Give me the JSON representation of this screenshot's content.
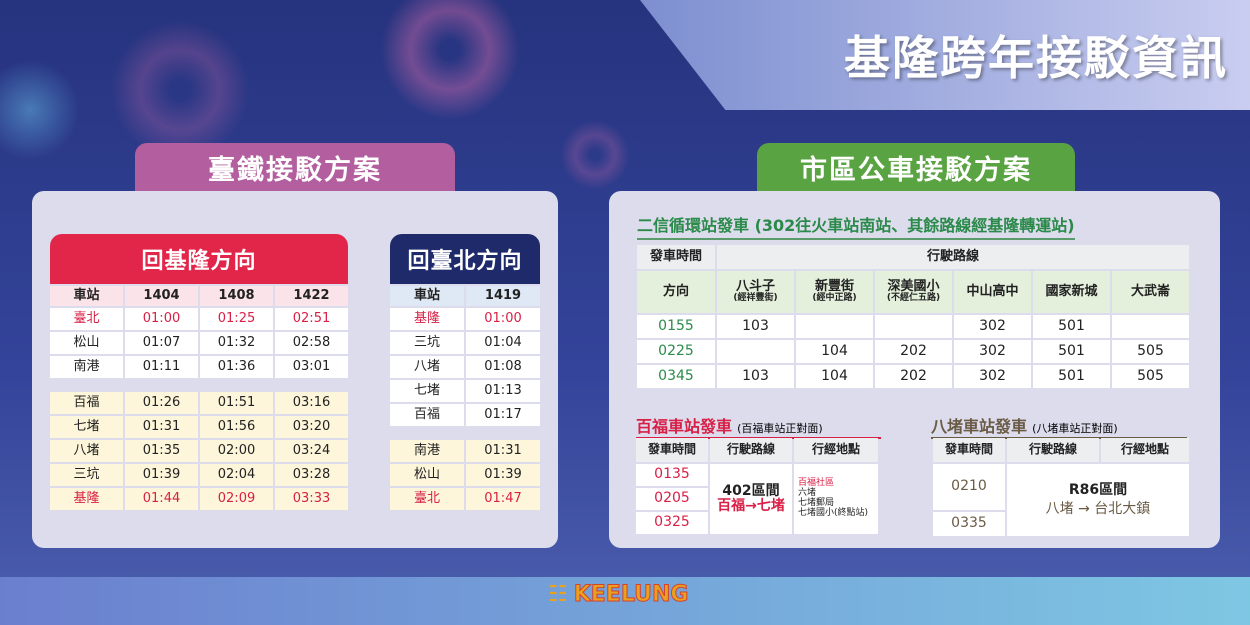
{
  "title": "基隆跨年接駁資訊",
  "rail": {
    "tab": "臺鐵接駁方案",
    "to_keelung": {
      "header": "回基隆方向",
      "columns": [
        "車站",
        "1404",
        "1408",
        "1422"
      ],
      "group1": [
        [
          "臺北",
          "01:00",
          "01:25",
          "02:51"
        ],
        [
          "松山",
          "01:07",
          "01:32",
          "02:58"
        ],
        [
          "南港",
          "01:11",
          "01:36",
          "03:01"
        ]
      ],
      "group2": [
        [
          "百福",
          "01:26",
          "01:51",
          "03:16"
        ],
        [
          "七堵",
          "01:31",
          "01:56",
          "03:20"
        ],
        [
          "八堵",
          "01:35",
          "02:00",
          "03:24"
        ],
        [
          "三坑",
          "01:39",
          "02:04",
          "03:28"
        ],
        [
          "基隆",
          "01:44",
          "02:09",
          "03:33"
        ]
      ]
    },
    "to_taipei": {
      "header": "回臺北方向",
      "columns": [
        "車站",
        "1419"
      ],
      "group1": [
        [
          "基隆",
          "01:00"
        ],
        [
          "三坑",
          "01:04"
        ],
        [
          "八堵",
          "01:08"
        ],
        [
          "七堵",
          "01:13"
        ],
        [
          "百福",
          "01:17"
        ]
      ],
      "group2": [
        [
          "南港",
          "01:31"
        ],
        [
          "松山",
          "01:39"
        ],
        [
          "臺北",
          "01:47"
        ]
      ]
    }
  },
  "bus": {
    "tab": "市區公車接駁方案",
    "erxin": {
      "title": "二信循環站發車 (302往火車站南站、其餘路線經基隆轉運站)",
      "time_header": "發車時間",
      "route_header": "行駛路線",
      "direction_header": "方向",
      "directions": [
        {
          "name": "八斗子",
          "note": "(經祥豐街)"
        },
        {
          "name": "新豐街",
          "note": "(經中正路)"
        },
        {
          "name": "深美國小",
          "note": "(不經仁五路)"
        },
        {
          "name": "中山高中",
          "note": ""
        },
        {
          "name": "國家新城",
          "note": ""
        },
        {
          "name": "大武崙",
          "note": ""
        }
      ],
      "rows": [
        [
          "0155",
          "103",
          "",
          "",
          "302",
          "501",
          ""
        ],
        [
          "0225",
          "",
          "104",
          "202",
          "302",
          "501",
          "505"
        ],
        [
          "0345",
          "103",
          "104",
          "202",
          "302",
          "501",
          "505"
        ]
      ]
    },
    "baifu": {
      "title": "百福車站發車",
      "note": "(百福車站正對面)",
      "headers": [
        "發車時間",
        "行駛路線",
        "行經地點"
      ],
      "times": [
        "0135",
        "0205",
        "0325"
      ],
      "route": "402區間",
      "route_path": "百福→七堵",
      "stops": [
        "百福社區",
        "六堵",
        "七堵郵局",
        "七堵國小(終點站)"
      ]
    },
    "badu": {
      "title": "八堵車站發車",
      "note": "(八堵車站正對面)",
      "headers": [
        "發車時間",
        "行駛路線",
        "行經地點"
      ],
      "times": [
        "0210",
        "0335"
      ],
      "route": "R86區間",
      "route_path": "八堵 → 台北大鎮"
    }
  },
  "footer": {
    "logo_text": "KEELUNG"
  },
  "colors": {
    "rail_tab": "#b35e9e",
    "bus_tab": "#5aa342",
    "keelung_header": "#e2264a",
    "taipei_header": "#1f2a6b",
    "red_text": "#d81f45",
    "green_text": "#2b8a4a"
  }
}
